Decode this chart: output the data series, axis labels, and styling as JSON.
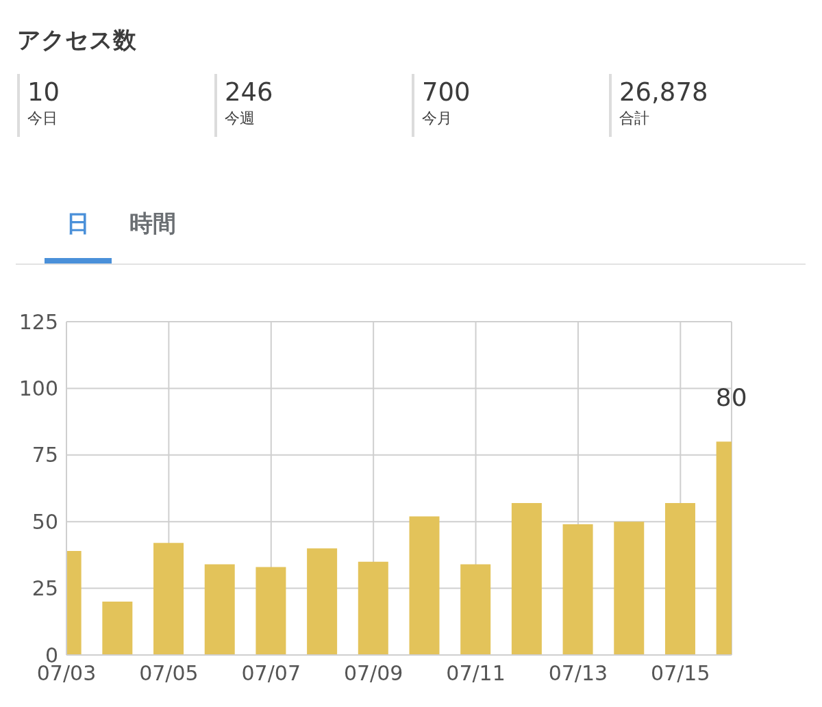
{
  "chart_data": {
    "type": "bar",
    "title": "アクセス数",
    "annotations": [
      "10",
      "今日",
      "246",
      "今週",
      "700",
      "今月",
      "26,878",
      "合計",
      "日",
      "時間"
    ],
    "categories": [
      "07/03",
      null,
      "07/05",
      null,
      "07/07",
      null,
      "07/09",
      null,
      "07/11",
      null,
      "07/13",
      null,
      "07/15",
      null
    ],
    "values": [
      39,
      20,
      42,
      34,
      33,
      40,
      35,
      52,
      34,
      57,
      49,
      50,
      57,
      80
    ],
    "value_labels": [
      null,
      null,
      null,
      null,
      null,
      null,
      null,
      null,
      null,
      null,
      null,
      null,
      null,
      "80"
    ],
    "color": "#e3c35a",
    "ylim": [
      0,
      125
    ],
    "yticks": [
      0,
      25,
      50,
      75,
      100,
      125
    ],
    "grid": true
  }
}
